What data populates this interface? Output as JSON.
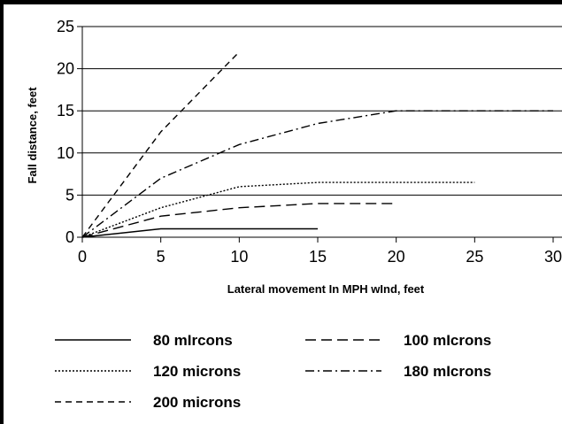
{
  "chart_data": {
    "type": "line",
    "xlabel": "Lateral movement In MPH wInd, feet",
    "ylabel": "Fall distance, feet",
    "xlim": [
      0,
      30
    ],
    "ylim": [
      0,
      25
    ],
    "xticks": [
      0,
      5,
      10,
      15,
      20,
      25,
      30
    ],
    "yticks": [
      0,
      5,
      10,
      15,
      20,
      25
    ],
    "xtick_labels": [
      "0",
      "5",
      "10",
      "15",
      "20",
      "25",
      "30"
    ],
    "ytick_labels": [
      "0",
      "5",
      "10",
      "15",
      "20",
      "25"
    ],
    "grid": "horizontal",
    "legend_position": "bottom",
    "series": [
      {
        "name": "80 mIrcons",
        "style": "solid",
        "x": [
          0,
          5,
          10,
          15
        ],
        "y": [
          0,
          1,
          1,
          1
        ]
      },
      {
        "name": "100 mIcrons",
        "style": "long-dash",
        "x": [
          0,
          5,
          10,
          15,
          20
        ],
        "y": [
          0,
          2.5,
          3.5,
          4,
          4
        ]
      },
      {
        "name": "120 microns",
        "style": "dotted",
        "x": [
          0,
          5,
          10,
          15,
          20,
          25
        ],
        "y": [
          0,
          3.5,
          6,
          6.5,
          6.5,
          6.5
        ]
      },
      {
        "name": "180 mIcrons",
        "style": "dash-dot",
        "x": [
          0,
          5,
          10,
          15,
          20,
          25,
          30
        ],
        "y": [
          0,
          7,
          11,
          13.5,
          15,
          15,
          15
        ]
      },
      {
        "name": "200 microns",
        "style": "dash",
        "x": [
          0,
          5,
          10
        ],
        "y": [
          0,
          12.5,
          22
        ]
      }
    ]
  }
}
